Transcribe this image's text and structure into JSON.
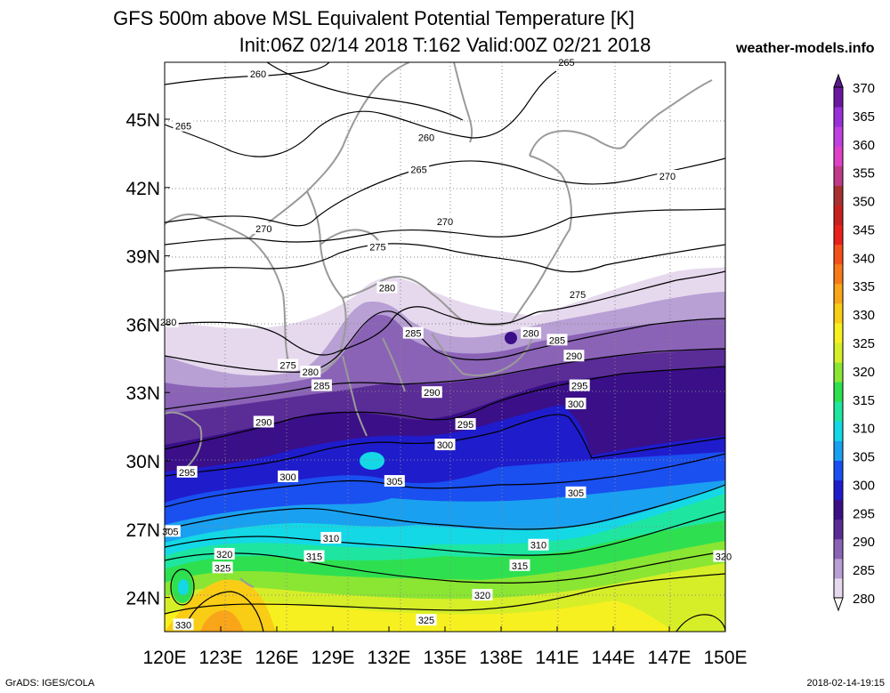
{
  "title_line1": "GFS 500m above MSL Equivalent Potential Temperature [K]",
  "title_line2": "Init:06Z 02/14 2018 T:162 Valid:00Z 02/21 2018",
  "site": "weather-models.info",
  "footer_left": "GrADS: IGES/COLA",
  "footer_right": "2018-02-14-19:15",
  "chart_data": {
    "type": "map-contour",
    "variable": "Equivalent Potential Temperature [K]",
    "level": "500m above MSL",
    "x_axis": {
      "ticks": [
        "120E",
        "123E",
        "126E",
        "129E",
        "132E",
        "135E",
        "138E",
        "141E",
        "144E",
        "147E",
        "150E"
      ],
      "range": [
        120,
        150
      ]
    },
    "y_axis": {
      "ticks": [
        "24N",
        "27N",
        "30N",
        "33N",
        "36N",
        "39N",
        "42N",
        "45N"
      ],
      "range": [
        22.5,
        47.5
      ]
    },
    "colorbar": {
      "levels": [
        280,
        285,
        290,
        295,
        300,
        305,
        310,
        315,
        320,
        325,
        330,
        335,
        340,
        345,
        350,
        355,
        360,
        365,
        370
      ],
      "colors": [
        "#e6d9ee",
        "#b89fd4",
        "#8a63b6",
        "#5a2c96",
        "#3a0f88",
        "#1f1ccc",
        "#1a4ff0",
        "#1aa0f0",
        "#14d8e6",
        "#1ee6a0",
        "#2ee050",
        "#8ae632",
        "#d6ee28",
        "#f7f020",
        "#f9cd16",
        "#f9a51a",
        "#f77a1a",
        "#f4501a",
        "#e8221a",
        "#c8201e",
        "#a83030",
        "#c03a8a",
        "#e040c8",
        "#c040e0",
        "#9a30d8",
        "#6a18a0"
      ]
    },
    "contour_labels": [
      {
        "value": "260",
        "lon": 125.0,
        "lat": 47.0
      },
      {
        "value": "265",
        "lon": 121.0,
        "lat": 44.7
      },
      {
        "value": "260",
        "lon": 134.0,
        "lat": 44.2
      },
      {
        "value": "265",
        "lon": 133.6,
        "lat": 42.8
      },
      {
        "value": "265",
        "lon": 141.5,
        "lat": 47.5
      },
      {
        "value": "270",
        "lon": 146.9,
        "lat": 42.5
      },
      {
        "value": "270",
        "lon": 125.3,
        "lat": 40.2
      },
      {
        "value": "270",
        "lon": 135.0,
        "lat": 40.5
      },
      {
        "value": "275",
        "lon": 131.4,
        "lat": 39.4
      },
      {
        "value": "275",
        "lon": 142.1,
        "lat": 37.3
      },
      {
        "value": "280",
        "lon": 131.9,
        "lat": 37.6
      },
      {
        "value": "280",
        "lon": 120.2,
        "lat": 36.1
      },
      {
        "value": "275",
        "lon": 126.6,
        "lat": 34.2
      },
      {
        "value": "280",
        "lon": 127.8,
        "lat": 33.9
      },
      {
        "value": "285",
        "lon": 128.4,
        "lat": 33.3
      },
      {
        "value": "285",
        "lon": 133.3,
        "lat": 35.6
      },
      {
        "value": "280",
        "lon": 139.6,
        "lat": 35.6
      },
      {
        "value": "285",
        "lon": 141.0,
        "lat": 35.3
      },
      {
        "value": "290",
        "lon": 141.9,
        "lat": 34.6
      },
      {
        "value": "290",
        "lon": 134.3,
        "lat": 33.0
      },
      {
        "value": "295",
        "lon": 142.2,
        "lat": 33.3
      },
      {
        "value": "300",
        "lon": 142.0,
        "lat": 32.5
      },
      {
        "value": "290",
        "lon": 125.3,
        "lat": 31.7
      },
      {
        "value": "295",
        "lon": 136.1,
        "lat": 31.6
      },
      {
        "value": "300",
        "lon": 135.0,
        "lat": 30.7
      },
      {
        "value": "295",
        "lon": 121.2,
        "lat": 29.5
      },
      {
        "value": "300",
        "lon": 126.6,
        "lat": 29.3
      },
      {
        "value": "305",
        "lon": 132.3,
        "lat": 29.1
      },
      {
        "value": "305",
        "lon": 142.0,
        "lat": 28.6
      },
      {
        "value": "305",
        "lon": 120.3,
        "lat": 26.9
      },
      {
        "value": "310",
        "lon": 128.9,
        "lat": 26.6
      },
      {
        "value": "310",
        "lon": 140.0,
        "lat": 26.3
      },
      {
        "value": "320",
        "lon": 123.2,
        "lat": 25.9
      },
      {
        "value": "315",
        "lon": 128.0,
        "lat": 25.8
      },
      {
        "value": "315",
        "lon": 139.0,
        "lat": 25.4
      },
      {
        "value": "325",
        "lon": 123.1,
        "lat": 25.3
      },
      {
        "value": "320",
        "lon": 149.9,
        "lat": 25.8
      },
      {
        "value": "320",
        "lon": 137.0,
        "lat": 24.1
      },
      {
        "value": "325",
        "lon": 134.0,
        "lat": 23.0
      },
      {
        "value": "330",
        "lon": 121.0,
        "lat": 22.8
      }
    ]
  }
}
